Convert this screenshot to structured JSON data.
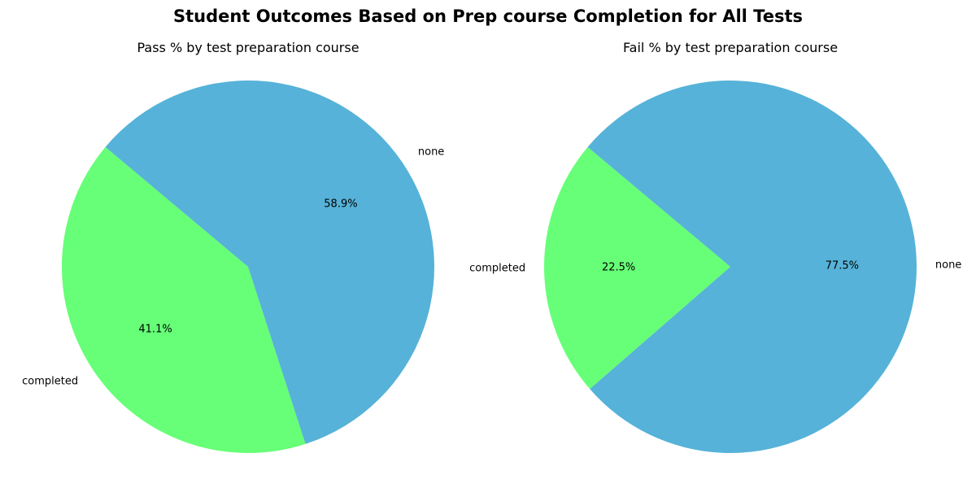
{
  "figure": {
    "title": "Student Outcomes Based on Prep course Completion for All Tests"
  },
  "chart_data": [
    {
      "type": "pie",
      "title": "Pass % by test preparation course",
      "labels": [
        "completed",
        "none"
      ],
      "values": [
        41.1,
        58.9
      ],
      "value_labels": [
        "41.1%",
        "58.9%"
      ],
      "colors": [
        "#66ff77",
        "#56b2d8"
      ],
      "start_angle_deg": 140,
      "direction": "counterclockwise"
    },
    {
      "type": "pie",
      "title": "Fail % by test preparation course",
      "labels": [
        "completed",
        "none"
      ],
      "values": [
        22.5,
        77.5
      ],
      "value_labels": [
        "22.5%",
        "77.5%"
      ],
      "colors": [
        "#66ff77",
        "#56b2d8"
      ],
      "start_angle_deg": 140,
      "direction": "counterclockwise"
    }
  ]
}
